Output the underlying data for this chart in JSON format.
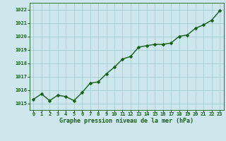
{
  "x": [
    0,
    1,
    2,
    3,
    4,
    5,
    6,
    7,
    8,
    9,
    10,
    11,
    12,
    13,
    14,
    15,
    16,
    17,
    18,
    19,
    20,
    21,
    22,
    23
  ],
  "y": [
    1015.3,
    1015.7,
    1015.2,
    1015.6,
    1015.5,
    1015.2,
    1015.8,
    1016.5,
    1016.6,
    1017.2,
    1017.7,
    1018.3,
    1018.5,
    1019.2,
    1019.3,
    1019.4,
    1019.4,
    1019.5,
    1020.0,
    1020.1,
    1020.6,
    1020.85,
    1021.2,
    1021.9
  ],
  "ylim": [
    1014.5,
    1022.5
  ],
  "yticks": [
    1015,
    1016,
    1017,
    1018,
    1019,
    1020,
    1021,
    1022
  ],
  "xlim": [
    -0.5,
    23.5
  ],
  "xticks": [
    0,
    1,
    2,
    3,
    4,
    5,
    6,
    7,
    8,
    9,
    10,
    11,
    12,
    13,
    14,
    15,
    16,
    17,
    18,
    19,
    20,
    21,
    22,
    23
  ],
  "xlabel": "Graphe pression niveau de la mer (hPa)",
  "line_color": "#1a5c1a",
  "marker_color": "#1a5c1a",
  "bg_plot": "#cce8ec",
  "bg_fig": "#cce8ec",
  "grid_color": "#a0c8cc",
  "line_width": 1.0,
  "marker_size": 2.5,
  "tick_fontsize": 5.0,
  "xlabel_fontsize": 6.0
}
